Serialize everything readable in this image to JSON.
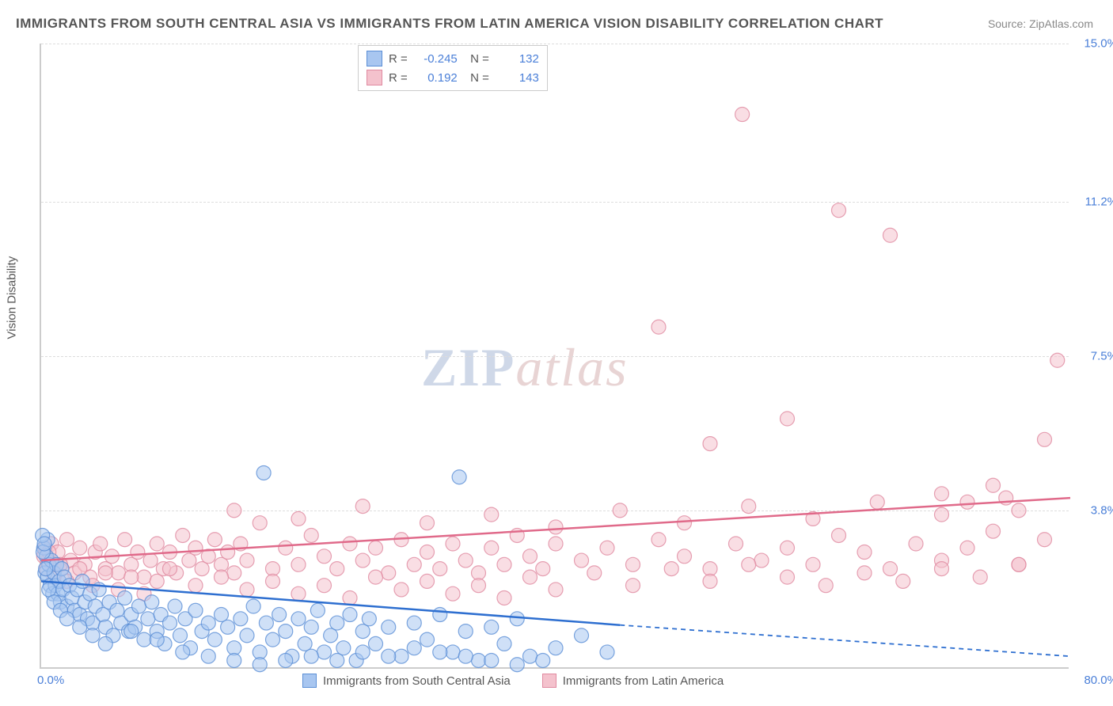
{
  "title": "IMMIGRANTS FROM SOUTH CENTRAL ASIA VS IMMIGRANTS FROM LATIN AMERICA VISION DISABILITY CORRELATION CHART",
  "source": "Source: ZipAtlas.com",
  "watermark_zip": "ZIP",
  "watermark_atlas": "atlas",
  "y_axis_label": "Vision Disability",
  "chart": {
    "type": "scatter",
    "xlim": [
      0,
      80
    ],
    "ylim": [
      0,
      15
    ],
    "x_min_label": "0.0%",
    "x_max_label": "80.0%",
    "y_ticks": [
      {
        "v": 3.8,
        "label": "3.8%"
      },
      {
        "v": 7.5,
        "label": "7.5%"
      },
      {
        "v": 11.2,
        "label": "11.2%"
      },
      {
        "v": 15.0,
        "label": "15.0%"
      }
    ],
    "series": [
      {
        "name": "Immigrants from South Central Asia",
        "color_fill": "#a8c6f0",
        "color_stroke": "#5b8fd6",
        "line_color": "#2e6fd0",
        "marker_r": 9,
        "marker_opacity": 0.55,
        "R": "-0.245",
        "N": "132",
        "trend": {
          "x1": 0,
          "y1": 2.1,
          "x2_solid": 45,
          "y2_solid": 1.05,
          "x2": 80,
          "y2": 0.3
        },
        "points": [
          [
            0.2,
            2.9
          ],
          [
            0.3,
            2.3
          ],
          [
            0.4,
            2.7
          ],
          [
            0.5,
            2.2
          ],
          [
            0.5,
            3.1
          ],
          [
            0.6,
            2.5
          ],
          [
            0.7,
            2.0
          ],
          [
            0.8,
            2.6
          ],
          [
            0.9,
            1.8
          ],
          [
            1.0,
            2.3
          ],
          [
            1.1,
            2.0
          ],
          [
            1.2,
            2.5
          ],
          [
            1.3,
            1.8
          ],
          [
            1.4,
            2.1
          ],
          [
            1.5,
            1.6
          ],
          [
            1.6,
            2.4
          ],
          [
            1.7,
            1.9
          ],
          [
            1.8,
            2.2
          ],
          [
            2.0,
            1.5
          ],
          [
            2.2,
            2.0
          ],
          [
            2.4,
            1.7
          ],
          [
            2.6,
            1.4
          ],
          [
            2.8,
            1.9
          ],
          [
            3.0,
            1.3
          ],
          [
            3.2,
            2.1
          ],
          [
            3.4,
            1.6
          ],
          [
            3.6,
            1.2
          ],
          [
            3.8,
            1.8
          ],
          [
            4.0,
            1.1
          ],
          [
            4.2,
            1.5
          ],
          [
            4.5,
            1.9
          ],
          [
            4.8,
            1.3
          ],
          [
            5.0,
            1.0
          ],
          [
            5.3,
            1.6
          ],
          [
            5.6,
            0.8
          ],
          [
            5.9,
            1.4
          ],
          [
            6.2,
            1.1
          ],
          [
            6.5,
            1.7
          ],
          [
            6.8,
            0.9
          ],
          [
            7.0,
            1.3
          ],
          [
            7.3,
            1.0
          ],
          [
            7.6,
            1.5
          ],
          [
            8.0,
            0.7
          ],
          [
            8.3,
            1.2
          ],
          [
            8.6,
            1.6
          ],
          [
            9.0,
            0.9
          ],
          [
            9.3,
            1.3
          ],
          [
            9.6,
            0.6
          ],
          [
            10.0,
            1.1
          ],
          [
            10.4,
            1.5
          ],
          [
            10.8,
            0.8
          ],
          [
            11.2,
            1.2
          ],
          [
            11.6,
            0.5
          ],
          [
            12.0,
            1.4
          ],
          [
            12.5,
            0.9
          ],
          [
            13.0,
            1.1
          ],
          [
            13.5,
            0.7
          ],
          [
            14.0,
            1.3
          ],
          [
            14.5,
            1.0
          ],
          [
            15.0,
            0.5
          ],
          [
            15.5,
            1.2
          ],
          [
            16.0,
            0.8
          ],
          [
            16.5,
            1.5
          ],
          [
            17.0,
            0.4
          ],
          [
            17.5,
            1.1
          ],
          [
            18.0,
            0.7
          ],
          [
            18.5,
            1.3
          ],
          [
            19.0,
            0.9
          ],
          [
            19.5,
            0.3
          ],
          [
            20.0,
            1.2
          ],
          [
            20.5,
            0.6
          ],
          [
            21.0,
            1.0
          ],
          [
            21.5,
            1.4
          ],
          [
            22.0,
            0.4
          ],
          [
            22.5,
            0.8
          ],
          [
            23.0,
            1.1
          ],
          [
            23.5,
            0.5
          ],
          [
            24.0,
            1.3
          ],
          [
            24.5,
            0.2
          ],
          [
            25.0,
            0.9
          ],
          [
            25.5,
            1.2
          ],
          [
            26.0,
            0.6
          ],
          [
            27.0,
            1.0
          ],
          [
            28.0,
            0.3
          ],
          [
            29.0,
            1.1
          ],
          [
            30.0,
            0.7
          ],
          [
            31.0,
            1.3
          ],
          [
            32.0,
            0.4
          ],
          [
            33.0,
            0.9
          ],
          [
            34.0,
            0.2
          ],
          [
            35.0,
            1.0
          ],
          [
            36.0,
            0.6
          ],
          [
            37.0,
            1.2
          ],
          [
            38.0,
            0.3
          ],
          [
            17.3,
            4.7
          ],
          [
            32.5,
            4.6
          ],
          [
            0.1,
            3.2
          ],
          [
            0.15,
            2.8
          ],
          [
            0.25,
            3.0
          ],
          [
            0.35,
            2.4
          ],
          [
            0.6,
            1.9
          ],
          [
            1.0,
            1.6
          ],
          [
            1.5,
            1.4
          ],
          [
            2.0,
            1.2
          ],
          [
            3.0,
            1.0
          ],
          [
            4.0,
            0.8
          ],
          [
            5.0,
            0.6
          ],
          [
            7.0,
            0.9
          ],
          [
            9.0,
            0.7
          ],
          [
            11.0,
            0.4
          ],
          [
            13.0,
            0.3
          ],
          [
            15.0,
            0.2
          ],
          [
            17.0,
            0.1
          ],
          [
            19.0,
            0.2
          ],
          [
            21.0,
            0.3
          ],
          [
            23.0,
            0.2
          ],
          [
            25.0,
            0.4
          ],
          [
            27.0,
            0.3
          ],
          [
            29.0,
            0.5
          ],
          [
            31.0,
            0.4
          ],
          [
            33.0,
            0.3
          ],
          [
            35.0,
            0.2
          ],
          [
            37.0,
            0.1
          ],
          [
            39.0,
            0.2
          ],
          [
            40.0,
            0.5
          ],
          [
            42.0,
            0.8
          ],
          [
            44.0,
            0.4
          ]
        ]
      },
      {
        "name": "Immigrants from Latin America",
        "color_fill": "#f4c2cd",
        "color_stroke": "#e08aa0",
        "line_color": "#e06a8a",
        "marker_r": 9,
        "marker_opacity": 0.55,
        "R": "0.192",
        "N": "143",
        "trend": {
          "x1": 0,
          "y1": 2.6,
          "x2_solid": 80,
          "y2_solid": 4.1,
          "x2": 80,
          "y2": 4.1
        },
        "points": [
          [
            0.3,
            2.9
          ],
          [
            0.5,
            2.6
          ],
          [
            0.8,
            3.0
          ],
          [
            1.0,
            2.5
          ],
          [
            1.3,
            2.8
          ],
          [
            1.6,
            2.4
          ],
          [
            2.0,
            3.1
          ],
          [
            2.3,
            2.6
          ],
          [
            2.6,
            2.3
          ],
          [
            3.0,
            2.9
          ],
          [
            3.4,
            2.5
          ],
          [
            3.8,
            2.2
          ],
          [
            4.2,
            2.8
          ],
          [
            4.6,
            3.0
          ],
          [
            5.0,
            2.4
          ],
          [
            5.5,
            2.7
          ],
          [
            6.0,
            2.3
          ],
          [
            6.5,
            3.1
          ],
          [
            7.0,
            2.5
          ],
          [
            7.5,
            2.8
          ],
          [
            8.0,
            2.2
          ],
          [
            8.5,
            2.6
          ],
          [
            9.0,
            3.0
          ],
          [
            9.5,
            2.4
          ],
          [
            10.0,
            2.8
          ],
          [
            10.5,
            2.3
          ],
          [
            11.0,
            3.2
          ],
          [
            11.5,
            2.6
          ],
          [
            12.0,
            2.9
          ],
          [
            12.5,
            2.4
          ],
          [
            13.0,
            2.7
          ],
          [
            13.5,
            3.1
          ],
          [
            14.0,
            2.5
          ],
          [
            14.5,
            2.8
          ],
          [
            15.0,
            2.3
          ],
          [
            15.5,
            3.0
          ],
          [
            16.0,
            2.6
          ],
          [
            17.0,
            3.5
          ],
          [
            18.0,
            2.4
          ],
          [
            19.0,
            2.9
          ],
          [
            20.0,
            2.5
          ],
          [
            21.0,
            3.2
          ],
          [
            22.0,
            2.7
          ],
          [
            23.0,
            2.4
          ],
          [
            24.0,
            3.0
          ],
          [
            25.0,
            2.6
          ],
          [
            26.0,
            2.9
          ],
          [
            27.0,
            2.3
          ],
          [
            28.0,
            3.1
          ],
          [
            29.0,
            2.5
          ],
          [
            30.0,
            2.8
          ],
          [
            31.0,
            2.4
          ],
          [
            32.0,
            3.0
          ],
          [
            33.0,
            2.6
          ],
          [
            34.0,
            2.3
          ],
          [
            35.0,
            2.9
          ],
          [
            36.0,
            2.5
          ],
          [
            37.0,
            3.2
          ],
          [
            38.0,
            2.7
          ],
          [
            39.0,
            2.4
          ],
          [
            40.0,
            3.0
          ],
          [
            42.0,
            2.6
          ],
          [
            44.0,
            2.9
          ],
          [
            46.0,
            2.5
          ],
          [
            48.0,
            3.1
          ],
          [
            50.0,
            2.7
          ],
          [
            52.0,
            2.4
          ],
          [
            54.0,
            3.0
          ],
          [
            56.0,
            2.6
          ],
          [
            58.0,
            2.9
          ],
          [
            60.0,
            2.5
          ],
          [
            62.0,
            3.2
          ],
          [
            64.0,
            2.8
          ],
          [
            66.0,
            2.4
          ],
          [
            68.0,
            3.0
          ],
          [
            70.0,
            2.6
          ],
          [
            72.0,
            2.9
          ],
          [
            74.0,
            3.3
          ],
          [
            76.0,
            2.5
          ],
          [
            78.0,
            3.1
          ],
          [
            15.0,
            3.8
          ],
          [
            20.0,
            3.6
          ],
          [
            25.0,
            3.9
          ],
          [
            30.0,
            3.5
          ],
          [
            35.0,
            3.7
          ],
          [
            40.0,
            3.4
          ],
          [
            45.0,
            3.8
          ],
          [
            50.0,
            3.5
          ],
          [
            55.0,
            3.9
          ],
          [
            60.0,
            3.6
          ],
          [
            65.0,
            4.0
          ],
          [
            70.0,
            3.7
          ],
          [
            75.0,
            4.1
          ],
          [
            48.0,
            8.2
          ],
          [
            52.0,
            5.4
          ],
          [
            58.0,
            6.0
          ],
          [
            62.0,
            11.0
          ],
          [
            54.5,
            13.3
          ],
          [
            66.0,
            10.4
          ],
          [
            70.0,
            4.2
          ],
          [
            72.0,
            4.0
          ],
          [
            74.0,
            4.4
          ],
          [
            76.0,
            3.8
          ],
          [
            78.0,
            5.5
          ],
          [
            79.0,
            7.4
          ],
          [
            0.2,
            2.7
          ],
          [
            0.4,
            2.4
          ],
          [
            0.6,
            2.8
          ],
          [
            1.0,
            2.2
          ],
          [
            1.5,
            2.5
          ],
          [
            2.0,
            2.1
          ],
          [
            3.0,
            2.4
          ],
          [
            4.0,
            2.0
          ],
          [
            5.0,
            2.3
          ],
          [
            6.0,
            1.9
          ],
          [
            7.0,
            2.2
          ],
          [
            8.0,
            1.8
          ],
          [
            9.0,
            2.1
          ],
          [
            10.0,
            2.4
          ],
          [
            12.0,
            2.0
          ],
          [
            14.0,
            2.2
          ],
          [
            16.0,
            1.9
          ],
          [
            18.0,
            2.1
          ],
          [
            20.0,
            1.8
          ],
          [
            22.0,
            2.0
          ],
          [
            24.0,
            1.7
          ],
          [
            26.0,
            2.2
          ],
          [
            28.0,
            1.9
          ],
          [
            30.0,
            2.1
          ],
          [
            32.0,
            1.8
          ],
          [
            34.0,
            2.0
          ],
          [
            36.0,
            1.7
          ],
          [
            38.0,
            2.2
          ],
          [
            40.0,
            1.9
          ],
          [
            43.0,
            2.3
          ],
          [
            46.0,
            2.0
          ],
          [
            49.0,
            2.4
          ],
          [
            52.0,
            2.1
          ],
          [
            55.0,
            2.5
          ],
          [
            58.0,
            2.2
          ],
          [
            61.0,
            2.0
          ],
          [
            64.0,
            2.3
          ],
          [
            67.0,
            2.1
          ],
          [
            70.0,
            2.4
          ],
          [
            73.0,
            2.2
          ],
          [
            76.0,
            2.5
          ]
        ]
      }
    ]
  }
}
